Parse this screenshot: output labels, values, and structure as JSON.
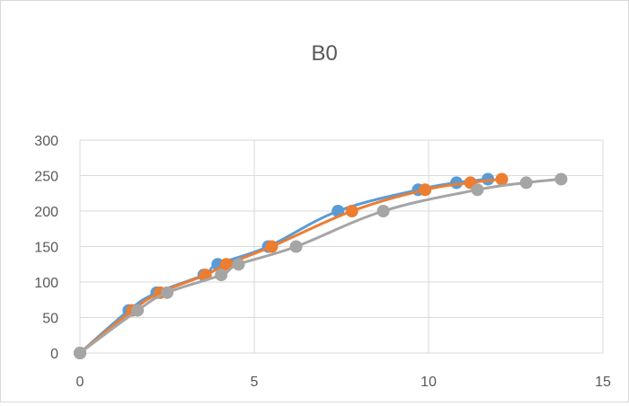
{
  "chart_data": {
    "type": "scatter",
    "title": "B0",
    "xlabel": "",
    "ylabel": "",
    "xlim": [
      0,
      15
    ],
    "ylim": [
      0,
      300
    ],
    "xticks": [
      0,
      5,
      10,
      15
    ],
    "yticks": [
      0,
      50,
      100,
      150,
      200,
      250,
      300
    ],
    "grid": true,
    "legend": "none",
    "series": [
      {
        "color": "#5b9bd5",
        "x": [
          0,
          1.4,
          2.2,
          3.55,
          3.95,
          5.4,
          7.4,
          9.7,
          10.8,
          11.7
        ],
        "y": [
          0,
          60,
          85,
          110,
          125,
          150,
          200,
          230,
          240,
          245
        ]
      },
      {
        "color": "#ed7d31",
        "x": [
          0,
          1.5,
          2.3,
          3.6,
          4.2,
          5.5,
          7.8,
          9.9,
          11.2,
          12.1
        ],
        "y": [
          0,
          60,
          85,
          110,
          125,
          150,
          200,
          230,
          240,
          245
        ]
      },
      {
        "color": "#a5a5a5",
        "x": [
          0,
          1.65,
          2.5,
          4.05,
          4.55,
          6.2,
          8.7,
          11.4,
          12.8,
          13.8
        ],
        "y": [
          0,
          60,
          85,
          110,
          125,
          150,
          200,
          230,
          240,
          245
        ]
      }
    ]
  }
}
